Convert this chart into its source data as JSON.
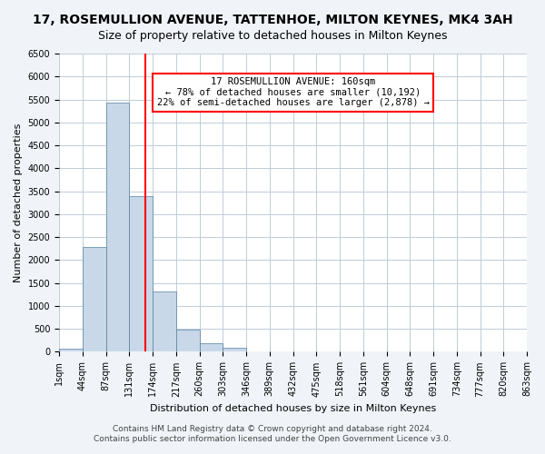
{
  "title": "17, ROSEMULLION AVENUE, TATTENHOE, MILTON KEYNES, MK4 3AH",
  "subtitle": "Size of property relative to detached houses in Milton Keynes",
  "xlabel": "Distribution of detached houses by size in Milton Keynes",
  "ylabel": "Number of detached properties",
  "bin_labels": [
    "1sqm",
    "44sqm",
    "87sqm",
    "131sqm",
    "174sqm",
    "217sqm",
    "260sqm",
    "303sqm",
    "346sqm",
    "389sqm",
    "432sqm",
    "475sqm",
    "518sqm",
    "561sqm",
    "604sqm",
    "648sqm",
    "691sqm",
    "734sqm",
    "777sqm",
    "820sqm",
    "863sqm"
  ],
  "bar_values": [
    70,
    2280,
    5440,
    3400,
    1310,
    480,
    190,
    80,
    0,
    0,
    0,
    0,
    0,
    0,
    0,
    0,
    0,
    0,
    0,
    0
  ],
  "bar_color": "#c8d8e8",
  "bar_edge_color": "#5580a0",
  "vline_x_index": 3.3,
  "vline_color": "red",
  "annotation_text": "17 ROSEMULLION AVENUE: 160sqm\n← 78% of detached houses are smaller (10,192)\n22% of semi-detached houses are larger (2,878) →",
  "annotation_box_color": "white",
  "annotation_box_edgecolor": "red",
  "ylim": [
    0,
    6500
  ],
  "yticks": [
    0,
    500,
    1000,
    1500,
    2000,
    2500,
    3000,
    3500,
    4000,
    4500,
    5000,
    5500,
    6000,
    6500
  ],
  "footer_line1": "Contains HM Land Registry data © Crown copyright and database right 2024.",
  "footer_line2": "Contains public sector information licensed under the Open Government Licence v3.0.",
  "background_color": "#f0f4f8",
  "plot_background_color": "white",
  "grid_color": "#c0ccd8",
  "title_fontsize": 10,
  "subtitle_fontsize": 9,
  "label_fontsize": 8,
  "tick_fontsize": 7,
  "footer_fontsize": 6.5
}
